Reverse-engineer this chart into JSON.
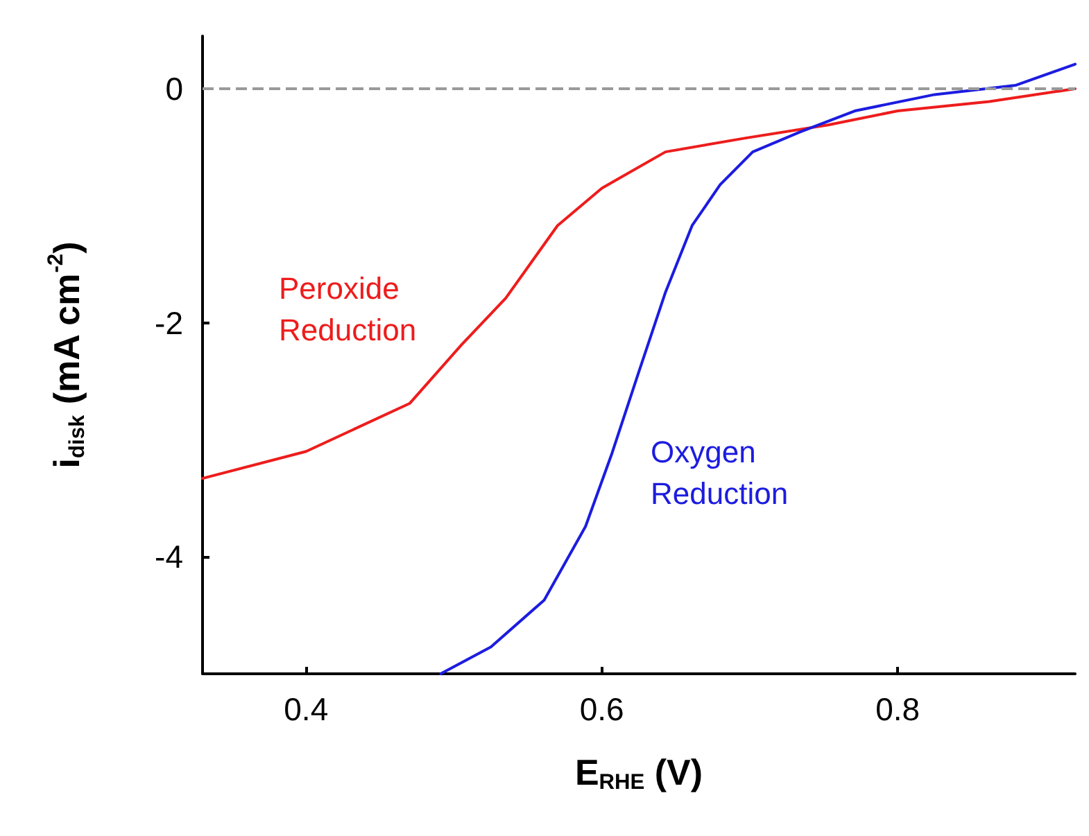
{
  "chart_data": {
    "type": "line",
    "xlabel": "E$_{RHE}$ (V)",
    "ylabel": "i$_{disk}$ (mA cm$^{-2}$)",
    "xlim": [
      0.33,
      0.92
    ],
    "ylim": [
      -5,
      0.45
    ],
    "xticks": [
      0.4,
      0.6,
      0.8
    ],
    "yticks": [
      0,
      -2,
      -4
    ],
    "grid": false,
    "marker": "none",
    "line_style": "solid",
    "series": [
      {
        "color": "#ee1c1c",
        "x": [
          0.33,
          0.4,
          0.47,
          0.505,
          0.535,
          0.57,
          0.6,
          0.643,
          0.698,
          0.753,
          0.8,
          0.862,
          0.92
        ],
        "values": [
          -3.33,
          -3.1,
          -2.69,
          -2.19,
          -1.79,
          -1.17,
          -0.85,
          -0.54,
          -0.42,
          -0.31,
          -0.19,
          -0.11,
          0
        ]
      },
      {
        "color": "#1c1ce0",
        "x": [
          0.491,
          0.525,
          0.561,
          0.589,
          0.607,
          0.625,
          0.643,
          0.661,
          0.68,
          0.702,
          0.734,
          0.771,
          0.825,
          0.88,
          0.92
        ],
        "values": [
          -5,
          -4.77,
          -4.37,
          -3.74,
          -3.11,
          -2.42,
          -1.74,
          -1.17,
          -0.82,
          -0.54,
          -0.37,
          -0.19,
          -0.05,
          0.03,
          0.21
        ]
      }
    ],
    "ref_lines": [
      {
        "axis": "y",
        "value": 0,
        "color": "#999999",
        "line_style": "dashed"
      }
    ],
    "annotations": [
      "Peroxide\nReduction",
      "Oxygen\nReduction"
    ]
  }
}
